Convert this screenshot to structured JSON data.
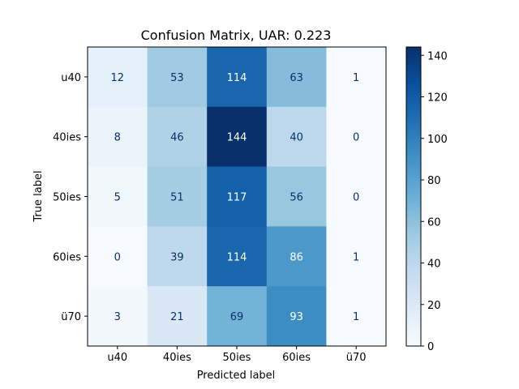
{
  "chart_data": {
    "type": "heatmap",
    "title": "Confusion Matrix, UAR: 0.223",
    "xlabel": "Predicted label",
    "ylabel": "True label",
    "x_categories": [
      "u40",
      "40ies",
      "50ies",
      "60ies",
      "ü70"
    ],
    "y_categories": [
      "u40",
      "40ies",
      "50ies",
      "60ies",
      "ü70"
    ],
    "values": [
      [
        12,
        53,
        114,
        63,
        1
      ],
      [
        8,
        46,
        144,
        40,
        0
      ],
      [
        5,
        51,
        117,
        56,
        0
      ],
      [
        0,
        39,
        114,
        86,
        1
      ],
      [
        3,
        21,
        69,
        93,
        1
      ]
    ],
    "colormap": "Blues",
    "color_range": [
      0,
      144
    ],
    "colorbar_ticks": [
      0,
      20,
      40,
      60,
      80,
      100,
      120,
      140
    ],
    "grid": false
  }
}
